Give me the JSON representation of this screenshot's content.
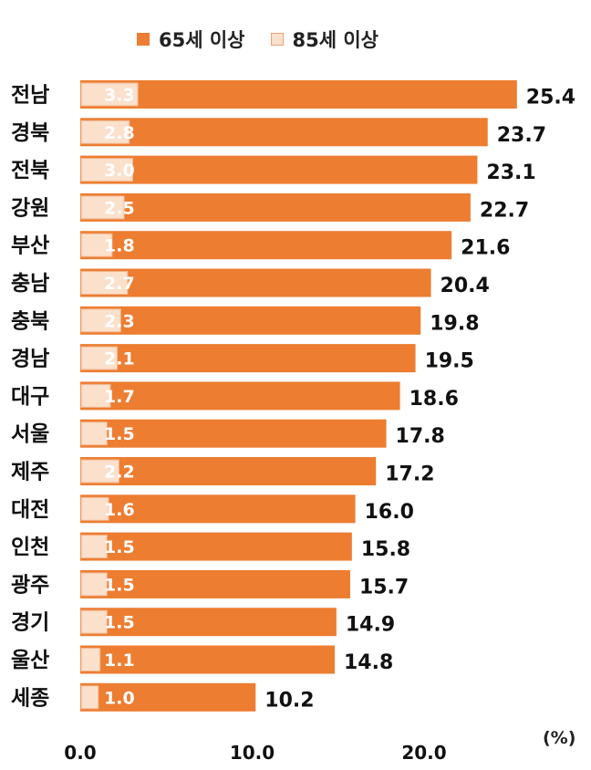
{
  "legend": {
    "items": [
      {
        "label": "65세 이상",
        "color": "#ED7D31"
      },
      {
        "label": "85세 이상",
        "color": "#FBE0CC"
      }
    ]
  },
  "unit_label": "(%)",
  "chart_data": {
    "type": "bar",
    "orientation": "horizontal",
    "categories": [
      "전남",
      "경북",
      "전북",
      "강원",
      "부산",
      "충남",
      "충북",
      "경남",
      "대구",
      "서울",
      "제주",
      "대전",
      "인천",
      "광주",
      "경기",
      "울산",
      "세종"
    ],
    "series": [
      {
        "name": "65세 이상",
        "color": "#ED7D31",
        "values": [
          25.4,
          23.7,
          23.1,
          22.7,
          21.6,
          20.4,
          19.8,
          19.5,
          18.6,
          17.8,
          17.2,
          16.0,
          15.8,
          15.7,
          14.9,
          14.8,
          10.2
        ]
      },
      {
        "name": "85세 이상",
        "color": "#FBE0CC",
        "values": [
          3.3,
          2.8,
          3.0,
          2.5,
          1.8,
          2.7,
          2.3,
          2.1,
          1.7,
          1.5,
          2.2,
          1.6,
          1.5,
          1.5,
          1.5,
          1.1,
          1.0
        ]
      }
    ],
    "x_ticks": [
      "0.0",
      "10.0",
      "20.0"
    ],
    "xlim": [
      0,
      28
    ],
    "grid": false,
    "legend_position": "top"
  }
}
